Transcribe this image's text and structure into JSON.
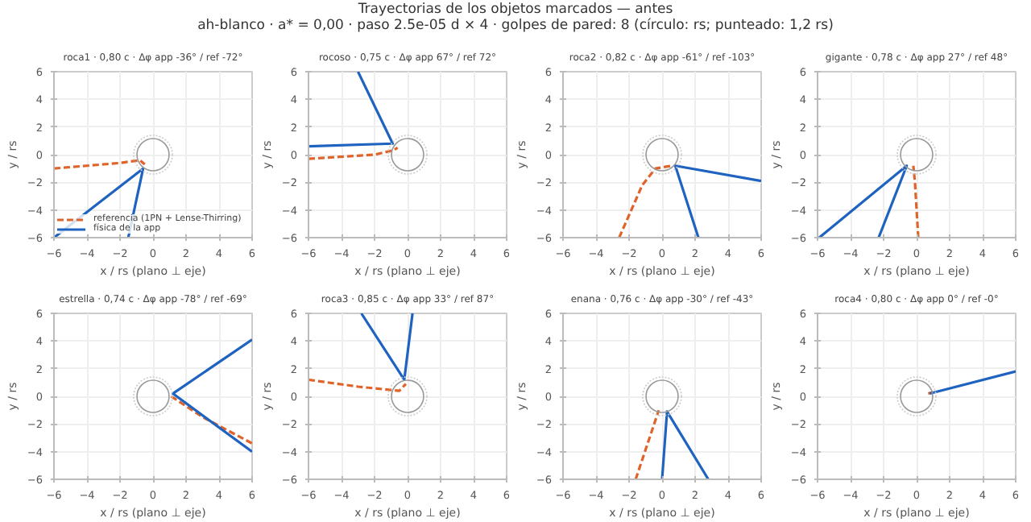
{
  "chart_data": [
    {
      "type": "other",
      "title": "Trayectorias de los objetos marcados — antes",
      "subtitle": "ah-blanco · a* = 0,00 · paso 2.5e-05 d × 4 · golpes de pared: 8  (círculo: rs; punteado: 1,2 rs)"
    },
    {
      "type": "line",
      "title": "roca1 · 0,80 c · Δφ app -36° / ref -72°",
      "xlabel": "x / rs (plano ⊥ eje)",
      "ylabel": "y / rs",
      "xlim": [
        -6,
        6
      ],
      "ylim": [
        -6,
        6
      ],
      "xticks": [
        -6,
        -4,
        -2,
        0,
        2,
        4,
        6
      ],
      "yticks": [
        -6,
        -4,
        -2,
        0,
        2,
        4,
        6
      ],
      "grid": true,
      "legend": "bottom left",
      "series": [
        {
          "name": "referencia (1PN + Lense-Thirring)",
          "color": "#e0642a",
          "line_style": "dashed",
          "x": [
            -6,
            -2,
            -0.8,
            -0.5
          ],
          "values": [
            -1,
            -0.6,
            -0.4,
            -0.7
          ]
        },
        {
          "name": "física de la app",
          "color": "#1f63c0",
          "line_style": "solid",
          "x": [
            -6,
            -0.6,
            -1.5
          ],
          "values": [
            -6,
            -1.0,
            -6
          ]
        },
        {
          "type": "bubble",
          "color": "#999999",
          "line_style": "solid",
          "x": [
            0
          ],
          "values": [
            0
          ],
          "sizes": [
            0.69
          ]
        },
        {
          "type": "bubble",
          "color": "#cccccc",
          "line_style": "dotted",
          "x": [
            0
          ],
          "values": [
            0
          ],
          "sizes": [
            1
          ]
        }
      ]
    },
    {
      "type": "line",
      "title": "rocoso · 0,75 c · Δφ app 67° / ref 72°",
      "xlabel": "x / rs (plano ⊥ eje)",
      "ylabel": "y / rs",
      "xlim": [
        -6,
        6
      ],
      "ylim": [
        -6,
        6
      ],
      "xticks": [
        -6,
        -4,
        -2,
        0,
        2,
        4,
        6
      ],
      "yticks": [
        -6,
        -4,
        -2,
        0,
        2,
        4,
        6
      ],
      "grid": true,
      "series": [
        {
          "color": "#e0642a",
          "line_style": "dashed",
          "x": [
            -6,
            -2,
            -0.9,
            -0.6
          ],
          "values": [
            -0.3,
            0,
            0.3,
            0.5
          ]
        },
        {
          "color": "#1f63c0",
          "line_style": "solid",
          "x": [
            -6,
            -0.9,
            -3
          ],
          "values": [
            0.6,
            0.8,
            6
          ]
        },
        {
          "type": "bubble",
          "color": "#999999",
          "line_style": "solid",
          "x": [
            0
          ],
          "values": [
            0
          ],
          "sizes": [
            0.69
          ]
        },
        {
          "type": "bubble",
          "color": "#cccccc",
          "line_style": "dotted",
          "x": [
            0
          ],
          "values": [
            0
          ],
          "sizes": [
            1
          ]
        }
      ]
    },
    {
      "type": "line",
      "title": "roca2 · 0,82 c · Δφ app -61° / ref -103°",
      "xlabel": "x / rs (plano ⊥ eje)",
      "ylabel": "y / rs",
      "xlim": [
        -6,
        6
      ],
      "ylim": [
        -6,
        6
      ],
      "xticks": [
        -6,
        -4,
        -2,
        0,
        2,
        4,
        6
      ],
      "yticks": [
        -6,
        -4,
        -2,
        0,
        2,
        4,
        6
      ],
      "grid": true,
      "series": [
        {
          "color": "#e0642a",
          "line_style": "dashed",
          "x": [
            -2.6,
            -1.2,
            -0.4,
            0.6
          ],
          "values": [
            -6,
            -2.2,
            -1.0,
            -0.8
          ]
        },
        {
          "color": "#1f63c0",
          "line_style": "solid",
          "x": [
            6,
            0.8,
            2.2
          ],
          "values": [
            -1.9,
            -0.8,
            -6
          ]
        },
        {
          "type": "bubble",
          "color": "#999999",
          "line_style": "solid",
          "x": [
            0
          ],
          "values": [
            0
          ],
          "sizes": [
            0.69
          ]
        },
        {
          "type": "bubble",
          "color": "#cccccc",
          "line_style": "dotted",
          "x": [
            0
          ],
          "values": [
            0
          ],
          "sizes": [
            1
          ]
        }
      ]
    },
    {
      "type": "line",
      "title": "gigante · 0,78 c · Δφ app 27° / ref 48°",
      "xlabel": "x / rs (plano ⊥ eje)",
      "ylabel": "y / rs",
      "xlim": [
        -6,
        6
      ],
      "ylim": [
        -6,
        6
      ],
      "xticks": [
        -6,
        -4,
        -2,
        0,
        2,
        4,
        6
      ],
      "yticks": [
        -6,
        -4,
        -2,
        0,
        2,
        4,
        6
      ],
      "grid": true,
      "series": [
        {
          "color": "#e0642a",
          "line_style": "dashed",
          "x": [
            0.1,
            -0.1,
            -0.2
          ],
          "values": [
            -6,
            -2,
            -0.8
          ]
        },
        {
          "color": "#1f63c0",
          "line_style": "solid",
          "x": [
            -5.9,
            -0.6,
            -2.3
          ],
          "values": [
            -6,
            -0.8,
            -6
          ]
        },
        {
          "type": "bubble",
          "color": "#999999",
          "line_style": "solid",
          "x": [
            0
          ],
          "values": [
            0
          ],
          "sizes": [
            0.69
          ]
        },
        {
          "type": "bubble",
          "color": "#cccccc",
          "line_style": "dotted",
          "x": [
            0
          ],
          "values": [
            0
          ],
          "sizes": [
            1
          ]
        }
      ]
    },
    {
      "type": "line",
      "title": "estrella · 0,74 c · Δφ app -78° / ref -69°",
      "xlabel": "x / rs (plano ⊥ eje)",
      "ylabel": "y / rs",
      "xlim": [
        -6,
        6
      ],
      "ylim": [
        -6,
        6
      ],
      "xticks": [
        -6,
        -4,
        -2,
        0,
        2,
        4,
        6
      ],
      "yticks": [
        -6,
        -4,
        -2,
        0,
        2,
        4,
        6
      ],
      "grid": true,
      "series": [
        {
          "color": "#e0642a",
          "line_style": "dashed",
          "x": [
            1.1,
            3,
            6
          ],
          "values": [
            0,
            -1.5,
            -3.4
          ]
        },
        {
          "color": "#1f63c0",
          "line_style": "solid",
          "x": [
            6,
            1.2,
            6
          ],
          "values": [
            4.1,
            0.2,
            -4.0
          ]
        },
        {
          "type": "bubble",
          "color": "#999999",
          "line_style": "solid",
          "x": [
            0
          ],
          "values": [
            0
          ],
          "sizes": [
            0.69
          ]
        },
        {
          "type": "bubble",
          "color": "#cccccc",
          "line_style": "dotted",
          "x": [
            0
          ],
          "values": [
            0
          ],
          "sizes": [
            1
          ]
        }
      ]
    },
    {
      "type": "line",
      "title": "roca3 · 0,85 c · Δφ app 33° / ref 87°",
      "xlabel": "x / rs (plano ⊥ eje)",
      "ylabel": "y / rs",
      "xlim": [
        -6,
        6
      ],
      "ylim": [
        -6,
        6
      ],
      "xticks": [
        -6,
        -4,
        -2,
        0,
        2,
        4,
        6
      ],
      "yticks": [
        -6,
        -4,
        -2,
        0,
        2,
        4,
        6
      ],
      "grid": true,
      "series": [
        {
          "color": "#e0642a",
          "line_style": "dashed",
          "x": [
            -6,
            -3,
            -0.5,
            -0.1
          ],
          "values": [
            1.2,
            0.7,
            0.4,
            0.9
          ]
        },
        {
          "color": "#1f63c0",
          "line_style": "solid",
          "x": [
            -2.8,
            -0.2,
            0.3
          ],
          "values": [
            6,
            1.2,
            6
          ]
        },
        {
          "type": "bubble",
          "color": "#999999",
          "line_style": "solid",
          "x": [
            0
          ],
          "values": [
            0
          ],
          "sizes": [
            0.69
          ]
        },
        {
          "type": "bubble",
          "color": "#cccccc",
          "line_style": "dotted",
          "x": [
            0
          ],
          "values": [
            0
          ],
          "sizes": [
            1
          ]
        }
      ]
    },
    {
      "type": "line",
      "title": "enana · 0,76 c · Δφ app -30° / ref -43°",
      "xlabel": "x / rs (plano ⊥ eje)",
      "ylabel": "y / rs",
      "xlim": [
        -6,
        6
      ],
      "ylim": [
        -6,
        6
      ],
      "xticks": [
        -6,
        -4,
        -2,
        0,
        2,
        4,
        6
      ],
      "yticks": [
        -6,
        -4,
        -2,
        0,
        2,
        4,
        6
      ],
      "grid": true,
      "series": [
        {
          "color": "#e0642a",
          "line_style": "dashed",
          "x": [
            -1.6,
            -0.2
          ],
          "values": [
            -6,
            -1.0
          ]
        },
        {
          "color": "#1f63c0",
          "line_style": "solid",
          "x": [
            0,
            0.3,
            2.8
          ],
          "values": [
            -6,
            -1.1,
            -6
          ]
        },
        {
          "type": "bubble",
          "color": "#999999",
          "line_style": "solid",
          "x": [
            0
          ],
          "values": [
            0
          ],
          "sizes": [
            0.69
          ]
        },
        {
          "type": "bubble",
          "color": "#cccccc",
          "line_style": "dotted",
          "x": [
            0
          ],
          "values": [
            0
          ],
          "sizes": [
            1
          ]
        }
      ]
    },
    {
      "type": "line",
      "title": "roca4 · 0,80 c · Δφ app 0° / ref -0°",
      "xlabel": "x / rs (plano ⊥ eje)",
      "ylabel": "y / rs",
      "xlim": [
        -6,
        6
      ],
      "ylim": [
        -6,
        6
      ],
      "xticks": [
        -6,
        -4,
        -2,
        0,
        2,
        4,
        6
      ],
      "yticks": [
        -6,
        -4,
        -2,
        0,
        2,
        4,
        6
      ],
      "grid": true,
      "series": [
        {
          "color": "#e0642a",
          "line_style": "dashed",
          "x": [
            0.7,
            1.0
          ],
          "values": [
            0.2,
            0.3
          ]
        },
        {
          "color": "#1f63c0",
          "line_style": "solid",
          "x": [
            0.8,
            6
          ],
          "values": [
            0.2,
            1.8
          ]
        },
        {
          "type": "bubble",
          "color": "#999999",
          "line_style": "solid",
          "x": [
            0
          ],
          "values": [
            0
          ],
          "sizes": [
            0.69
          ]
        },
        {
          "type": "bubble",
          "color": "#cccccc",
          "line_style": "dotted",
          "x": [
            0
          ],
          "values": [
            0
          ],
          "sizes": [
            1
          ]
        }
      ]
    }
  ]
}
